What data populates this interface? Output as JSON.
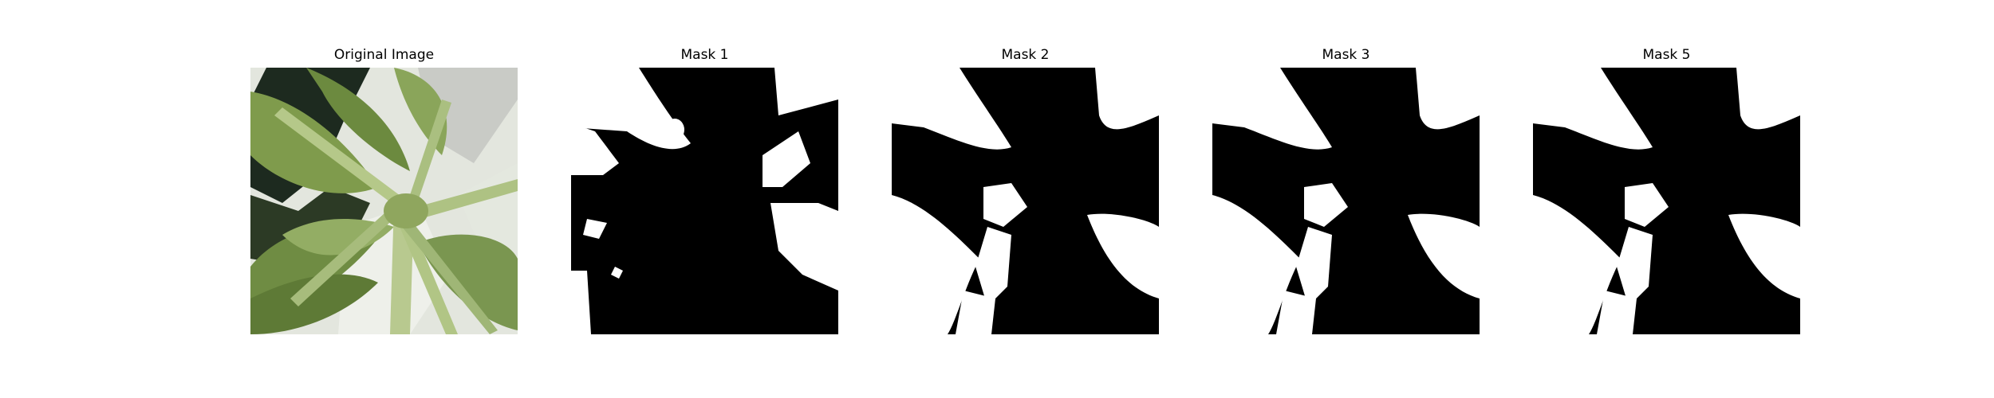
{
  "panels": [
    {
      "title": "Original Image",
      "kind": "photo",
      "subject": "plant-leaves"
    },
    {
      "title": "Mask 1",
      "kind": "mask"
    },
    {
      "title": "Mask 2",
      "kind": "mask"
    },
    {
      "title": "Mask 3",
      "kind": "mask"
    },
    {
      "title": "Mask 5",
      "kind": "mask"
    }
  ],
  "colors": {
    "background": "#ffffff",
    "mask_foreground": "#000000",
    "mask_background": "#ffffff",
    "leaf_light": "#a9bd7a",
    "leaf_mid": "#7d9a4a",
    "leaf_dark": "#4f6b2c",
    "shadow": "#1f2a1a"
  }
}
